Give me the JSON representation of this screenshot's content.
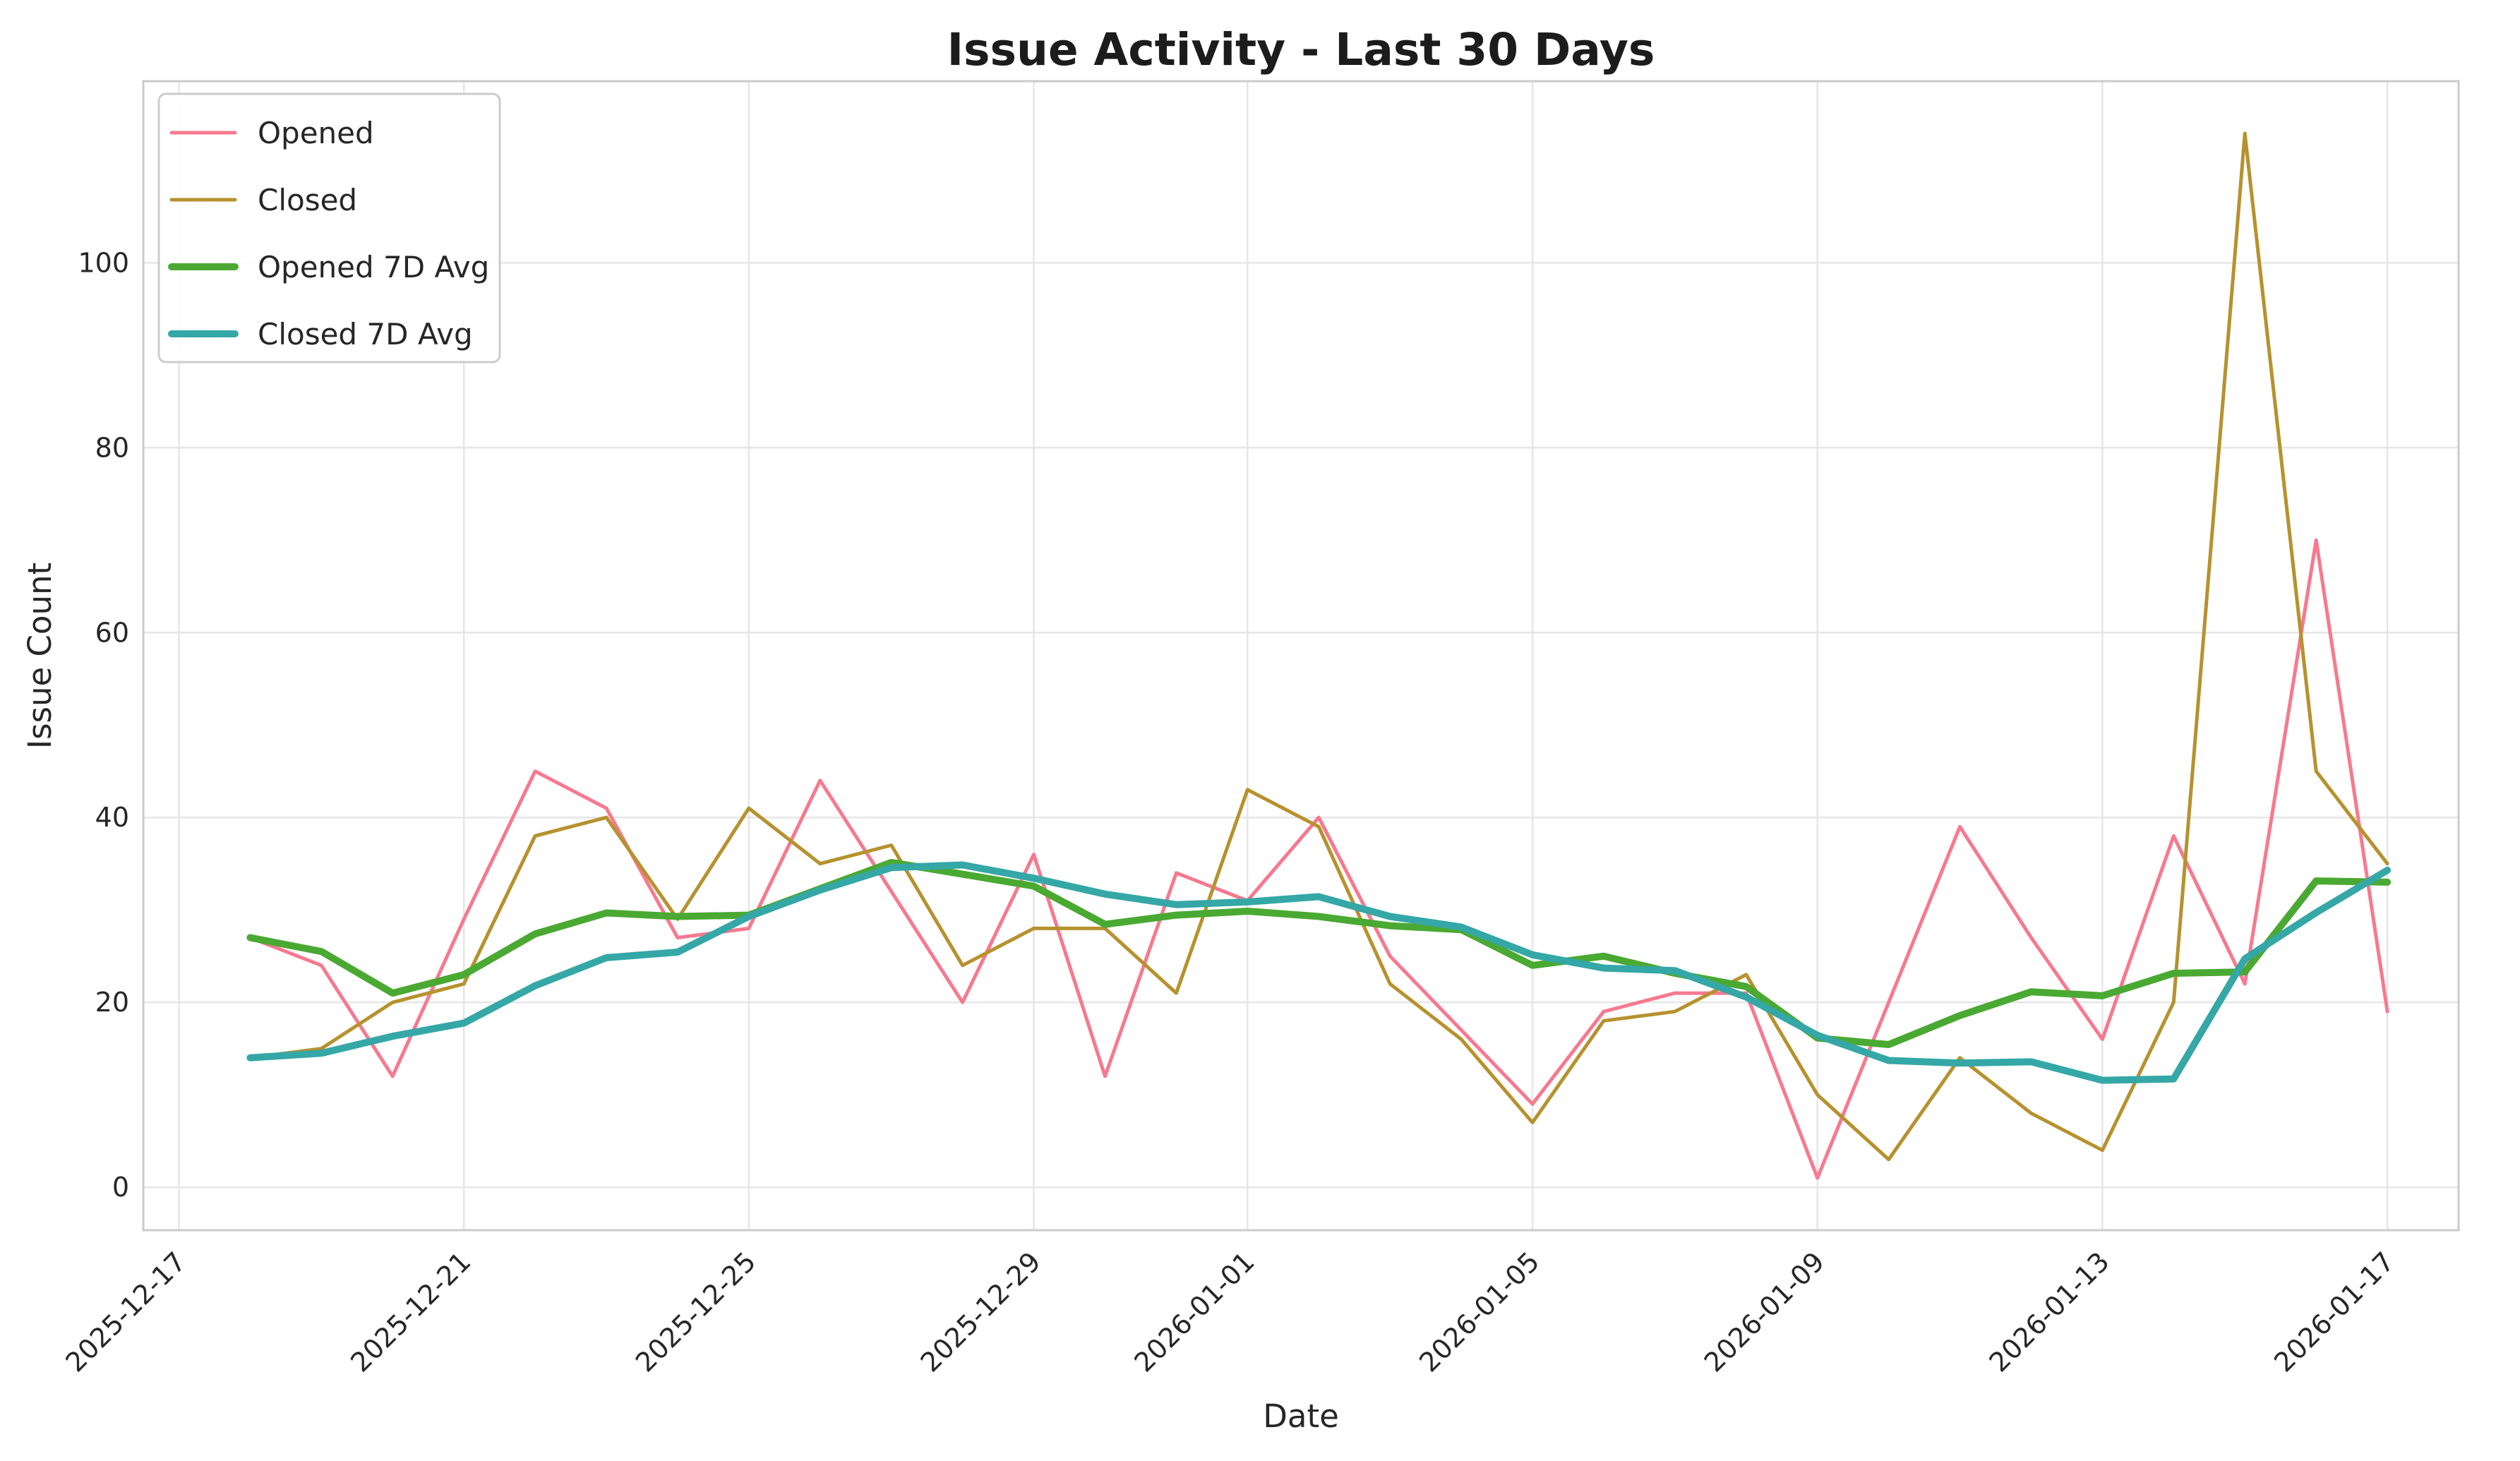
{
  "chart_data": {
    "type": "line",
    "title": "Issue Activity - Last 30 Days",
    "xlabel": "Date",
    "ylabel": "Issue Count",
    "grid": true,
    "legend_position": "upper-left",
    "ylim": [
      -4.65,
      119.65
    ],
    "xlim_days": [
      -0.5,
      32
    ],
    "y_ticks": [
      0,
      20,
      40,
      60,
      80,
      100
    ],
    "x_tick_labels": [
      "2025-12-17",
      "2025-12-21",
      "2025-12-25",
      "2025-12-29",
      "2026-01-01",
      "2026-01-05",
      "2026-01-09",
      "2026-01-13",
      "2026-01-17"
    ],
    "x_tick_day_offsets": [
      0,
      4,
      8,
      12,
      15,
      19,
      23,
      27,
      31
    ],
    "dates": [
      "2025-12-18",
      "2025-12-19",
      "2025-12-20",
      "2025-12-21",
      "2025-12-22",
      "2025-12-23",
      "2025-12-24",
      "2025-12-25",
      "2025-12-26",
      "2025-12-27",
      "2025-12-28",
      "2025-12-29",
      "2025-12-30",
      "2025-12-31",
      "2026-01-01",
      "2026-01-02",
      "2026-01-03",
      "2026-01-04",
      "2026-01-05",
      "2026-01-06",
      "2026-01-07",
      "2026-01-08",
      "2026-01-09",
      "2026-01-10",
      "2026-01-11",
      "2026-01-12",
      "2026-01-13",
      "2026-01-14",
      "2026-01-15",
      "2026-01-16",
      "2026-01-17"
    ],
    "series": [
      {
        "name": "Opened",
        "color": "#F7798F",
        "width": 5,
        "values": [
          27,
          24,
          12,
          29,
          45,
          41,
          27,
          28,
          44,
          32,
          20,
          36,
          12,
          34,
          31,
          40,
          25,
          17,
          9,
          19,
          21,
          21,
          1,
          20,
          39,
          27,
          16,
          38,
          22,
          70,
          19
        ]
      },
      {
        "name": "Closed",
        "color": "#B6922E",
        "width": 5,
        "values": [
          14,
          15,
          20,
          22,
          38,
          40,
          29,
          41,
          35,
          37,
          24,
          28,
          28,
          21,
          43,
          39,
          22,
          16,
          7,
          18,
          19,
          23,
          10,
          3,
          14,
          8,
          4,
          20,
          114,
          45,
          35
        ]
      },
      {
        "name": "Opened 7D Avg",
        "color": "#4AA932",
        "width": 10,
        "values": [
          27,
          25.5,
          21,
          23,
          27.4,
          29.67,
          29.29,
          29.43,
          32.29,
          35.14,
          33.86,
          32.57,
          28.43,
          29.43,
          29.86,
          29.29,
          28.29,
          27.86,
          24,
          25,
          23.14,
          21.71,
          16.14,
          15.43,
          18.57,
          21.14,
          20.71,
          23.14,
          23.29,
          33.14,
          33
        ]
      },
      {
        "name": "Closed 7D Avg",
        "color": "#35A7A7",
        "width": 10,
        "values": [
          14,
          14.5,
          16.33,
          17.75,
          21.8,
          24.83,
          25.43,
          29.29,
          32.14,
          34.57,
          34.86,
          33.43,
          31.71,
          30.57,
          30.86,
          31.43,
          29.29,
          28.14,
          25.14,
          23.71,
          23.43,
          20.57,
          16.43,
          13.71,
          13.43,
          13.57,
          11.57,
          11.71,
          24.71,
          29.71,
          34.29
        ]
      }
    ],
    "style": {
      "grid_color": "#E6E6E6",
      "spine_color": "#CBCBCB",
      "text_color": "#262626",
      "background": "#FFFFFF",
      "legend_border": "#CCCCCC",
      "legend_fill": "#FFFFFF"
    }
  }
}
